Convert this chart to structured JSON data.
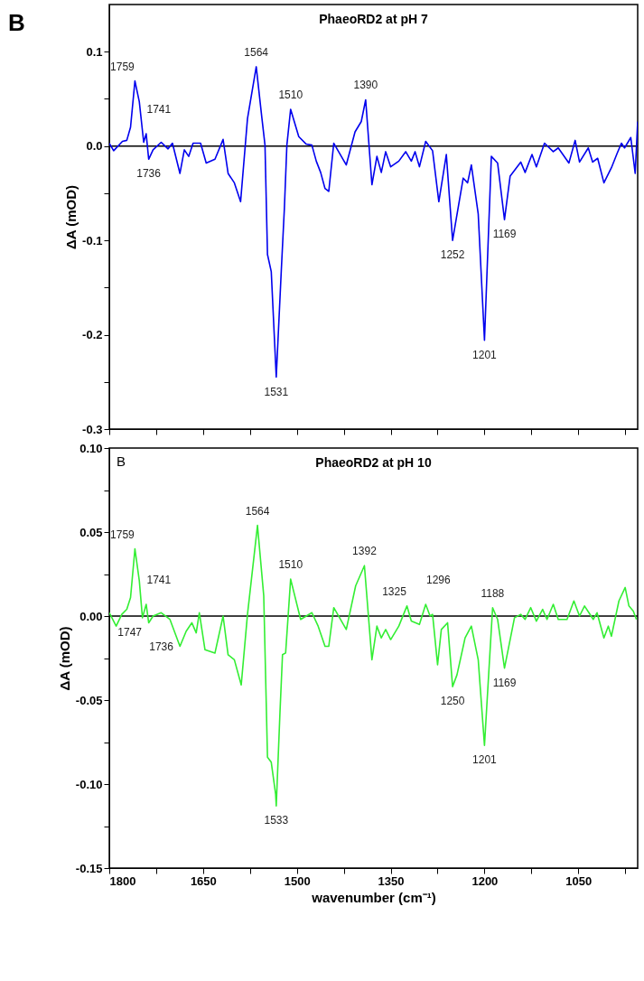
{
  "chart_data": [
    {
      "type": "line",
      "title": "PhaeoRD2 at pH 7",
      "ylabel": "ΔA (mOD)",
      "tick_labels": "y",
      "xlim": [
        1800,
        955
      ],
      "ylim": [
        -0.3,
        0.15
      ],
      "xticks": [
        1800,
        {
          "value": 1725,
          "label": null
        },
        1650,
        {
          "value": 1575,
          "label": null
        },
        1500,
        {
          "value": 1425,
          "label": null
        },
        1350,
        {
          "value": 1275,
          "label": null
        },
        1200,
        {
          "value": 1125,
          "label": null
        },
        1050,
        {
          "value": 975,
          "label": null
        }
      ],
      "yticks": [
        0.1,
        {
          "value": 0.05,
          "label": null
        },
        {
          "value": 0,
          "label": "0.0"
        },
        {
          "value": -0.05,
          "label": null
        },
        -0.1,
        {
          "value": -0.15,
          "label": null
        },
        -0.2,
        {
          "value": -0.25,
          "label": null
        },
        -0.3
      ],
      "ref_lines": [
        {
          "axis": "y",
          "value": 0,
          "color": "#000000"
        }
      ],
      "x": [
        1800,
        1793,
        1779,
        1772,
        1766,
        1759,
        1752,
        1745,
        1741,
        1737,
        1730,
        1717,
        1706,
        1699,
        1687,
        1680,
        1673,
        1666,
        1654,
        1645,
        1631,
        1618,
        1610,
        1600,
        1590,
        1579,
        1565,
        1556,
        1551,
        1547,
        1541,
        1533,
        1525,
        1520,
        1516,
        1510,
        1497,
        1485,
        1476,
        1469,
        1462,
        1455,
        1449,
        1441,
        1421,
        1407,
        1397,
        1390,
        1380,
        1372,
        1365,
        1358,
        1350,
        1337,
        1326,
        1317,
        1311,
        1304,
        1294,
        1283,
        1273,
        1261,
        1251,
        1234,
        1227,
        1221,
        1210,
        1200,
        1189,
        1179,
        1168,
        1159,
        1142,
        1135,
        1124,
        1117,
        1104,
        1090,
        1082,
        1065,
        1055,
        1048,
        1034,
        1027,
        1019,
        1009,
        997,
        988,
        981,
        976,
        966,
        959,
        955
      ],
      "series": [
        {
          "color": "#0000ee",
          "values": [
            0.003,
            -0.005,
            0.005,
            0.006,
            0.02,
            0.069,
            0.047,
            0.004,
            0.013,
            -0.014,
            -0.004,
            0.004,
            -0.003,
            0.003,
            -0.029,
            -0.004,
            -0.011,
            0.003,
            0.003,
            -0.018,
            -0.014,
            0.007,
            -0.029,
            -0.039,
            -0.059,
            0.029,
            0.084,
            0.03,
            0.001,
            -0.115,
            -0.133,
            -0.245,
            -0.133,
            -0.066,
            0.001,
            0.039,
            0.01,
            0.002,
            0.001,
            -0.016,
            -0.028,
            -0.045,
            -0.048,
            0.003,
            -0.02,
            0.015,
            0.026,
            0.049,
            -0.041,
            -0.011,
            -0.028,
            -0.006,
            -0.022,
            -0.016,
            -0.006,
            -0.016,
            -0.006,
            -0.022,
            0.005,
            -0.005,
            -0.059,
            -0.009,
            -0.1,
            -0.034,
            -0.039,
            -0.02,
            -0.072,
            -0.206,
            -0.011,
            -0.018,
            -0.078,
            -0.032,
            -0.017,
            -0.028,
            -0.009,
            -0.022,
            0.003,
            -0.006,
            -0.002,
            -0.018,
            0.006,
            -0.017,
            -0.002,
            -0.017,
            -0.013,
            -0.039,
            -0.023,
            -0.008,
            0.003,
            -0.002,
            0.009,
            -0.029,
            0.026
          ]
        }
      ],
      "annotations": [
        "B",
        {
          "text": "1759",
          "x": 1759,
          "y": 0.069
        },
        {
          "text": "1741",
          "x": 1741,
          "y": 0.013
        },
        {
          "text": "1736",
          "x": 1737,
          "y": -0.014
        },
        {
          "text": "1564",
          "x": 1565,
          "y": 0.084
        },
        {
          "text": "1531",
          "x": 1533,
          "y": -0.245
        },
        {
          "text": "1510",
          "x": 1510,
          "y": 0.039
        },
        {
          "text": "1390",
          "x": 1390,
          "y": 0.049
        },
        {
          "text": "1252",
          "x": 1251,
          "y": -0.1
        },
        {
          "text": "1201",
          "x": 1200,
          "y": -0.206
        },
        {
          "text": "1169",
          "x": 1168,
          "y": -0.078
        }
      ]
    },
    {
      "type": "line",
      "title": "PhaeoRD2 at pH 10",
      "ylabel": "ΔA (mOD)",
      "xlabel": "wavenumber (cm⁻¹)",
      "xlim": [
        1800,
        955
      ],
      "ylim": [
        -0.15,
        0.1
      ],
      "xticks": [
        1800,
        {
          "value": 1725,
          "label": null
        },
        1650,
        {
          "value": 1575,
          "label": null
        },
        1500,
        {
          "value": 1425,
          "label": null
        },
        1350,
        {
          "value": 1275,
          "label": null
        },
        1200,
        {
          "value": 1125,
          "label": null
        },
        1050,
        {
          "value": 975,
          "label": null
        }
      ],
      "yticks": [
        {
          "value": 0.1,
          "label": "0.10"
        },
        {
          "value": 0.075,
          "label": null
        },
        0.05,
        {
          "value": 0.025,
          "label": null
        },
        {
          "value": 0,
          "label": "0.00"
        },
        {
          "value": -0.025,
          "label": null
        },
        -0.05,
        {
          "value": -0.075,
          "label": null
        },
        {
          "value": -0.1,
          "label": "-0.10"
        },
        {
          "value": -0.125,
          "label": null
        },
        -0.15
      ],
      "ref_lines": [
        {
          "axis": "y",
          "value": 0,
          "color": "#000000"
        }
      ],
      "x": [
        1800,
        1789,
        1780,
        1772,
        1766,
        1759,
        1752,
        1747,
        1741,
        1737,
        1730,
        1717,
        1703,
        1687,
        1677,
        1668,
        1661,
        1656,
        1647,
        1631,
        1618,
        1610,
        1600,
        1589,
        1579,
        1563,
        1553,
        1547,
        1541,
        1534,
        1533,
        1527,
        1523,
        1518,
        1510,
        1494,
        1476,
        1466,
        1455,
        1449,
        1441,
        1421,
        1406,
        1392,
        1380,
        1372,
        1365,
        1358,
        1350,
        1337,
        1324,
        1317,
        1304,
        1294,
        1287,
        1283,
        1275,
        1269,
        1259,
        1251,
        1244,
        1231,
        1221,
        1210,
        1200,
        1187,
        1179,
        1168,
        1152,
        1142,
        1135,
        1126,
        1117,
        1107,
        1100,
        1090,
        1082,
        1068,
        1057,
        1048,
        1040,
        1033,
        1026,
        1020,
        1009,
        1002,
        997,
        985,
        975,
        969,
        962,
        957
      ],
      "series": [
        {
          "color": "#33ee33",
          "values": [
            0.002,
            -0.006,
            0.001,
            0.004,
            0.011,
            0.04,
            0.021,
            -0.001,
            0.007,
            -0.004,
            0.0,
            0.002,
            -0.002,
            -0.018,
            -0.009,
            -0.004,
            -0.01,
            0.002,
            -0.02,
            -0.022,
            0.0,
            -0.023,
            -0.026,
            -0.041,
            0.001,
            0.054,
            0.012,
            -0.084,
            -0.087,
            -0.106,
            -0.113,
            -0.057,
            -0.023,
            -0.022,
            0.022,
            -0.002,
            0.002,
            -0.006,
            -0.018,
            -0.018,
            0.005,
            -0.008,
            0.018,
            0.03,
            -0.026,
            -0.006,
            -0.013,
            -0.008,
            -0.014,
            -0.006,
            0.006,
            -0.003,
            -0.005,
            0.007,
            0.0,
            0.001,
            -0.029,
            -0.008,
            -0.004,
            -0.042,
            -0.035,
            -0.013,
            -0.006,
            -0.026,
            -0.077,
            0.005,
            -0.002,
            -0.031,
            -0.001,
            0.001,
            -0.002,
            0.005,
            -0.003,
            0.004,
            -0.002,
            0.007,
            -0.002,
            -0.002,
            0.009,
            0.0,
            0.006,
            0.002,
            -0.002,
            0.002,
            -0.013,
            -0.006,
            -0.012,
            0.009,
            0.017,
            0.006,
            0.003,
            -0.002
          ]
        }
      ],
      "annotations": [
        "B",
        {
          "text": "1759",
          "x": 1759,
          "y": 0.04
        },
        {
          "text": "1747",
          "x": 1747,
          "y": -0.001
        },
        {
          "text": "1741",
          "x": 1741,
          "y": 0.007
        },
        {
          "text": "1736",
          "x": 1737,
          "y": -0.004
        },
        {
          "text": "1564",
          "x": 1563,
          "y": 0.054
        },
        {
          "text": "1533",
          "x": 1533,
          "y": -0.113
        },
        {
          "text": "1510",
          "x": 1510,
          "y": 0.022
        },
        {
          "text": "1392",
          "x": 1392,
          "y": 0.03
        },
        {
          "text": "1325",
          "x": 1324,
          "y": 0.006
        },
        {
          "text": "1296",
          "x": 1294,
          "y": 0.007
        },
        {
          "text": "1250",
          "x": 1251,
          "y": -0.042
        },
        {
          "text": "1201",
          "x": 1200,
          "y": -0.077
        },
        {
          "text": "1188",
          "x": 1187,
          "y": 0.005
        },
        {
          "text": "1169",
          "x": 1168,
          "y": -0.031
        }
      ]
    }
  ]
}
